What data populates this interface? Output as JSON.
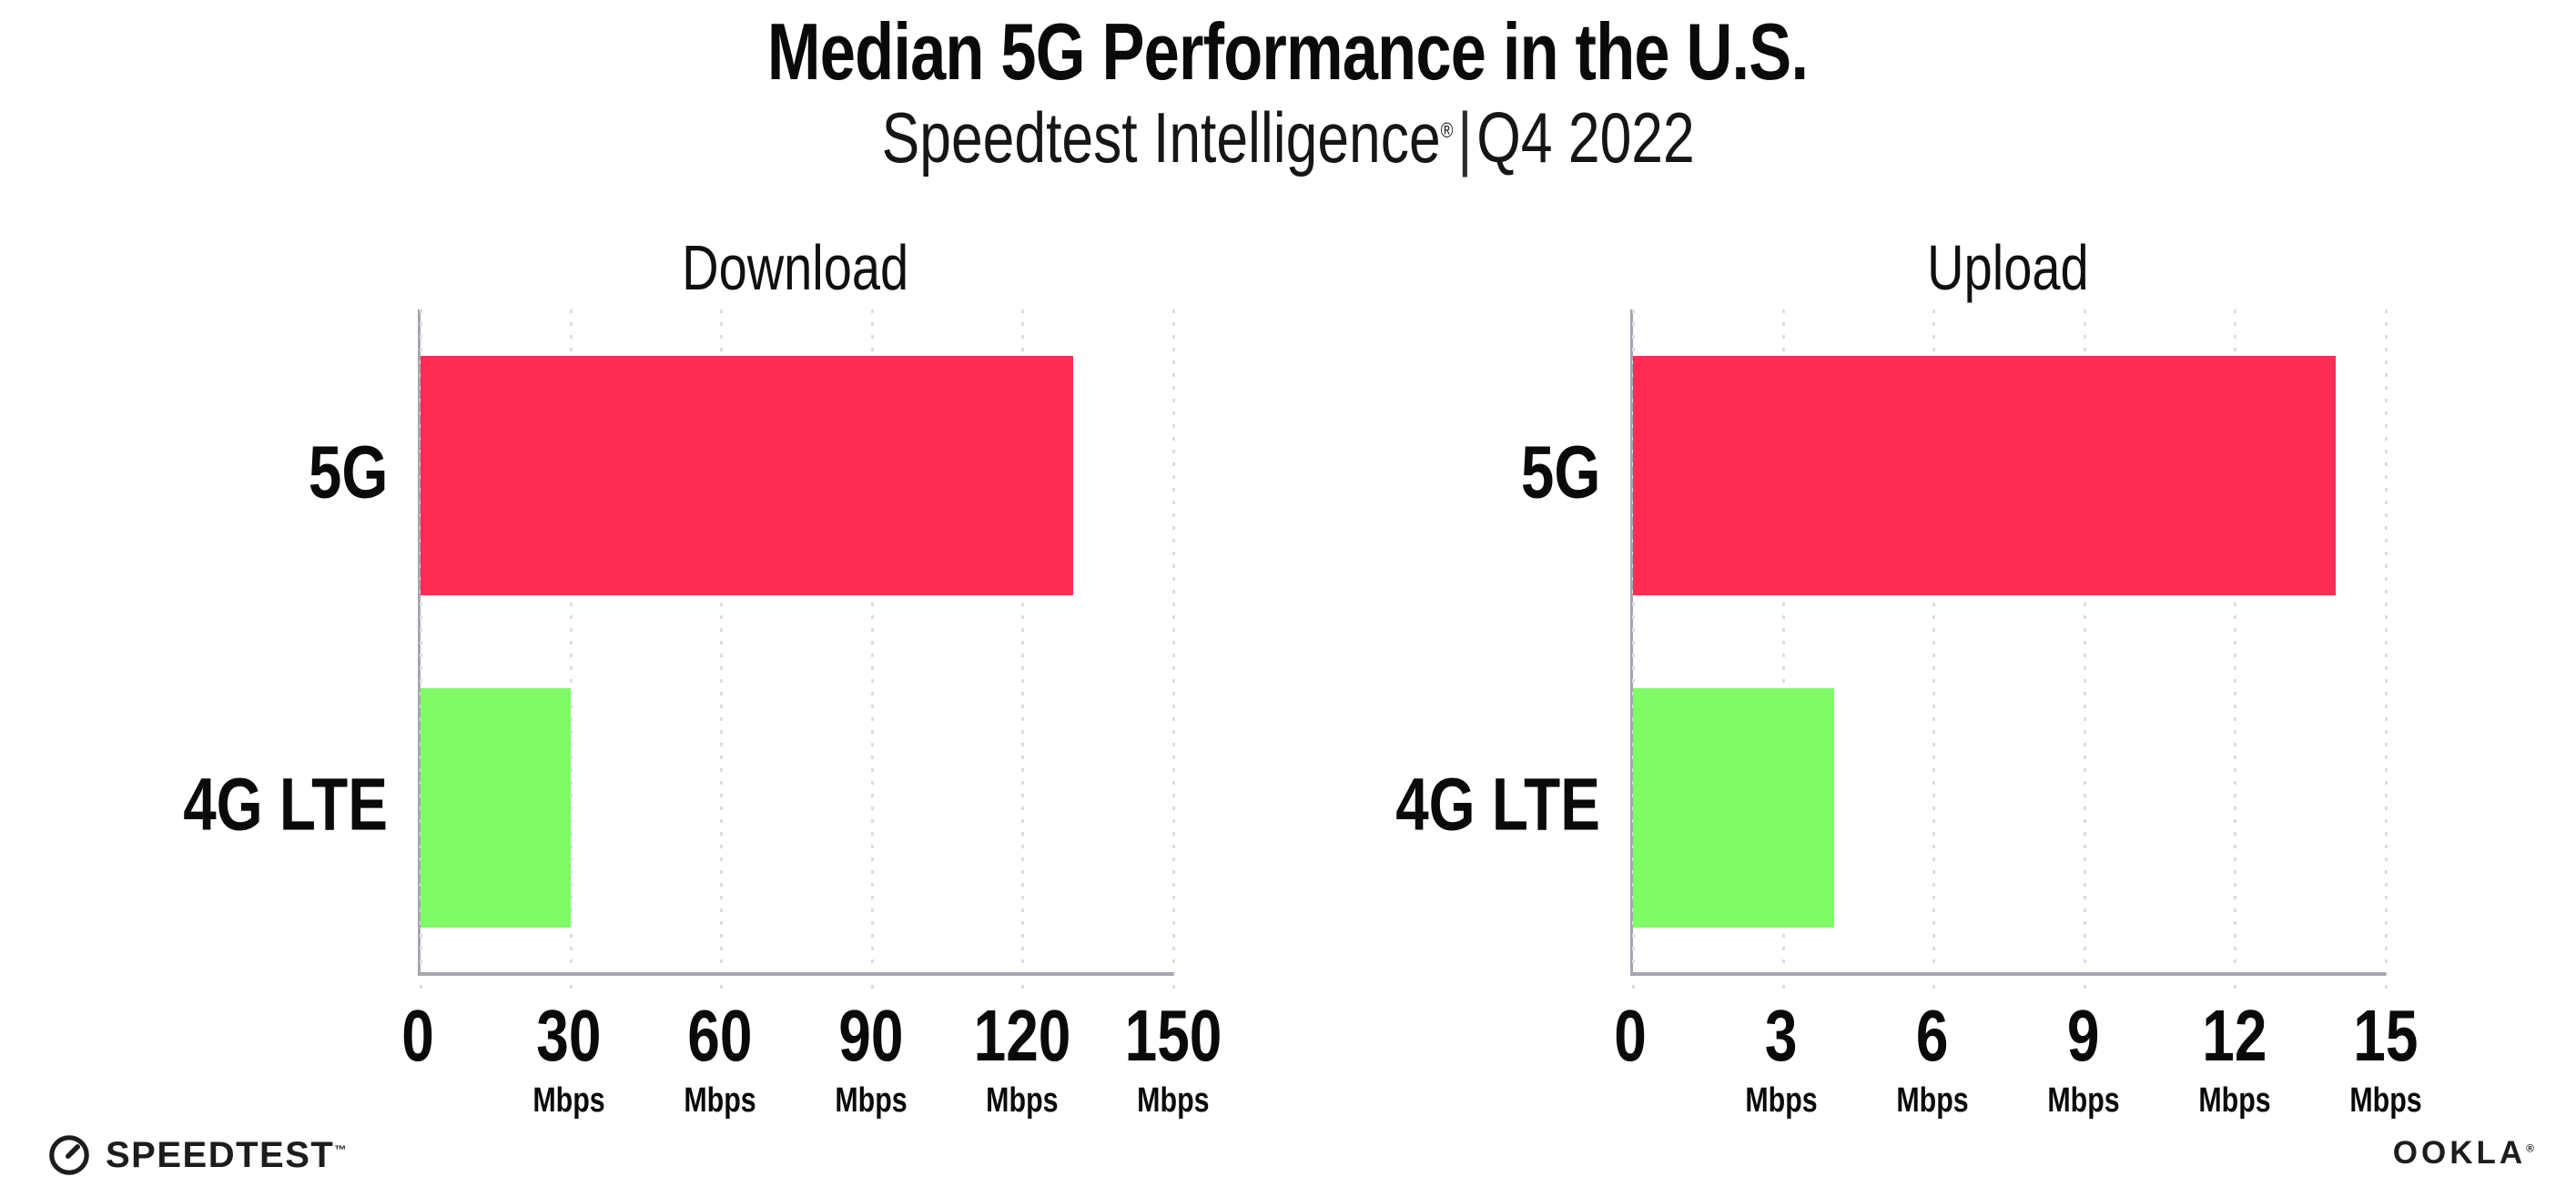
{
  "page": {
    "title": "Median 5G Performance in the U.S.",
    "subtitle_brand": "Speedtest Intelligence",
    "subtitle_reg": "®",
    "subtitle_sep": "|",
    "subtitle_period": "Q4 2022"
  },
  "colors": {
    "bar_5g": "#FD2D56",
    "bar_4g_lte": "#80FA67",
    "axis": "#A6A6B0",
    "gridline": "#DCDCE6",
    "text": "#0A0A0A"
  },
  "chart_data": [
    {
      "type": "bar",
      "orientation": "horizontal",
      "title": "Download",
      "categories": [
        "5G",
        "4G LTE"
      ],
      "values": [
        130,
        30
      ],
      "unit": "Mbps",
      "xlim": [
        0,
        150
      ],
      "xticks": [
        0,
        30,
        60,
        90,
        120,
        150
      ],
      "tick_unit_label": "Mbps",
      "grid": "vertical-dotted",
      "legend": "none",
      "bar_colors": [
        "#FD2D56",
        "#80FA67"
      ]
    },
    {
      "type": "bar",
      "orientation": "horizontal",
      "title": "Upload",
      "categories": [
        "5G",
        "4G LTE"
      ],
      "values": [
        14,
        4
      ],
      "unit": "Mbps",
      "xlim": [
        0,
        15
      ],
      "xticks": [
        0,
        3,
        6,
        9,
        12,
        15
      ],
      "tick_unit_label": "Mbps",
      "grid": "vertical-dotted",
      "legend": "none",
      "bar_colors": [
        "#FD2D56",
        "#80FA67"
      ]
    }
  ],
  "footer": {
    "speedtest_logo_text": "SPEEDTEST",
    "speedtest_trademark": "™",
    "speedtest_icon": "gauge-icon",
    "ookla_logo_text": "OOKLA",
    "ookla_trademark": "®"
  }
}
